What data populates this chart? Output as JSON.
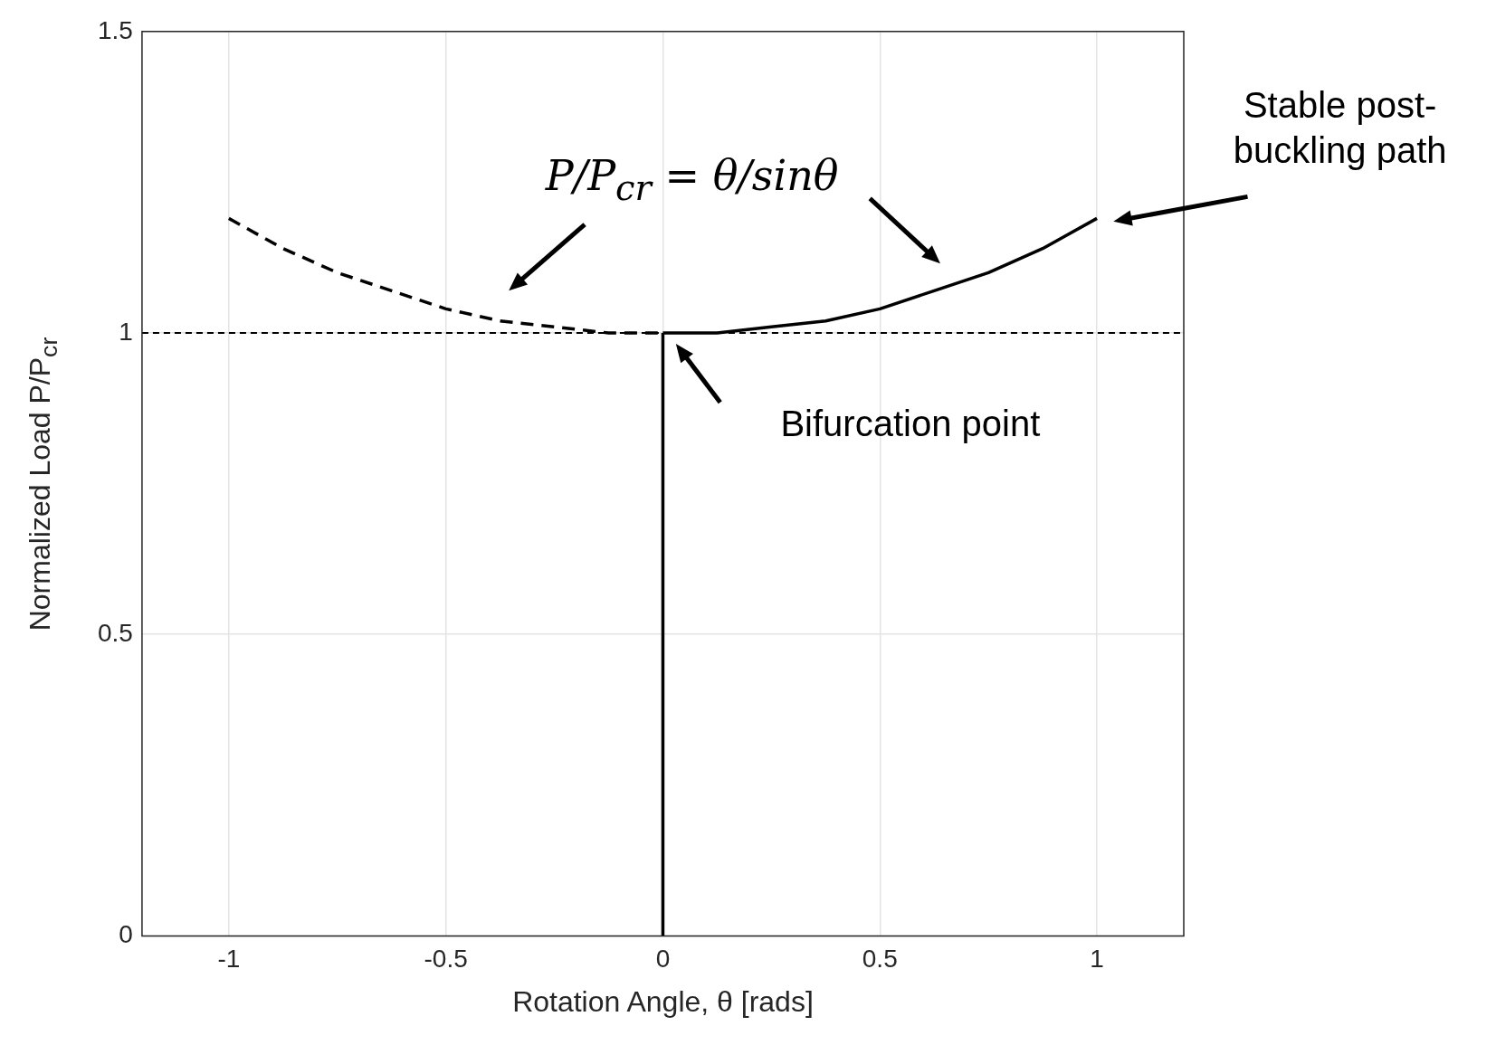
{
  "chart_data": {
    "type": "line",
    "xlabel": "Rotation Angle, θ [rads]",
    "ylabel": "Normalized Load P/P$_{cr}$",
    "annotations": [
      "P/P$_{cr}$ = θ/sinθ",
      "Stable post-buckling path",
      "Bifurcation point"
    ],
    "series": [
      {
        "color": "#000000",
        "line_style": "dashed",
        "x": [
          -1,
          -0.875,
          -0.75,
          -0.625,
          -0.5,
          -0.375,
          -0.25,
          -0.125,
          0
        ],
        "values": [
          1.19,
          1.14,
          1.1,
          1.07,
          1.04,
          1.02,
          1.01,
          1,
          1
        ]
      },
      {
        "color": "#000000",
        "line_style": "solid",
        "x": [
          0,
          0.125,
          0.25,
          0.375,
          0.5,
          0.625,
          0.75,
          0.875,
          1
        ],
        "values": [
          1,
          1,
          1.01,
          1.02,
          1.04,
          1.07,
          1.1,
          1.14,
          1.19
        ]
      },
      {
        "color": "#000000",
        "line_style": "solid",
        "x": [
          0,
          0
        ],
        "values": [
          0,
          1
        ]
      }
    ],
    "ref_lines": [
      {
        "axis": "y",
        "value": 1,
        "line_style": "dashed",
        "color": "#000000"
      }
    ],
    "xlim": [
      -1.2,
      1.2
    ],
    "xticks": [
      -1,
      -0.5,
      0,
      0.5,
      1
    ],
    "ylim": [
      0,
      1.5
    ],
    "yticks": [
      0,
      0.5,
      1,
      1.5
    ],
    "grid": true,
    "legend": false,
    "marker": "none"
  }
}
